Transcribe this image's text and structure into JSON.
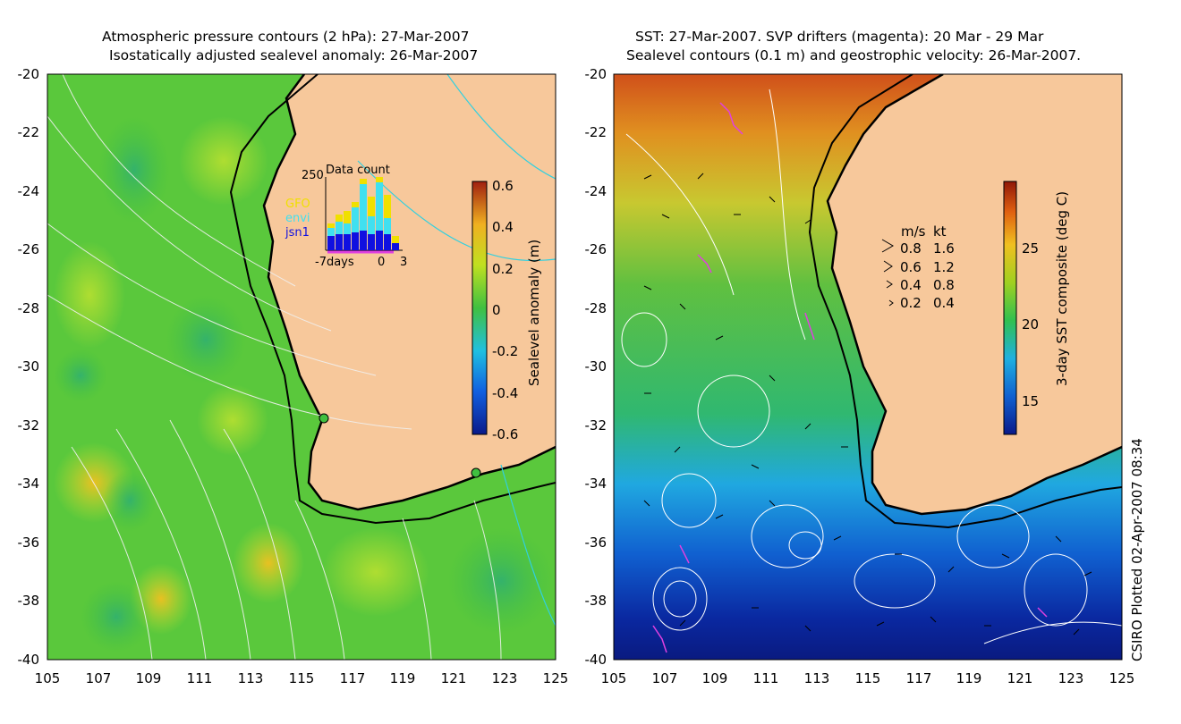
{
  "left_panel": {
    "title_line1": "Atmospheric pressure contours (2 hPa): 27-Mar-2007",
    "title_line2": "Isostatically adjusted sealevel anomaly: 26-Mar-2007",
    "colorbar": {
      "label": "Sealevel anomaly (m)",
      "ticks": [
        "0.6",
        "0.4",
        "0.2",
        "0",
        "-0.2",
        "-0.4",
        "-0.6"
      ]
    },
    "inset": {
      "title": "Data count",
      "y_tick": "250",
      "legend": [
        "GFO",
        "envi",
        "jsn1"
      ],
      "x_ticks": [
        "-7days",
        "0",
        "3"
      ],
      "colors": {
        "GFO": "#f0e000",
        "envi": "#40e0f0",
        "jsn1": "#1010e0"
      }
    }
  },
  "right_panel": {
    "title_line1": "SST: 27-Mar-2007. SVP drifters (magenta): 20 Mar - 29 Mar",
    "title_line2": "Sealevel contours (0.1 m) and geostrophic velocity: 26-Mar-2007.",
    "colorbar": {
      "label": "3-day SST composite (deg C)",
      "ticks": [
        "25",
        "20",
        "15"
      ]
    },
    "speed_legend": {
      "header_ms": "m/s",
      "header_kt": "kt",
      "rows": [
        {
          "ms": "0.8",
          "kt": "1.6"
        },
        {
          "ms": "0.6",
          "kt": "1.2"
        },
        {
          "ms": "0.4",
          "kt": "0.8"
        },
        {
          "ms": "0.2",
          "kt": "0.4"
        }
      ]
    }
  },
  "y_ticks": [
    "-20",
    "-22",
    "-24",
    "-26",
    "-28",
    "-30",
    "-32",
    "-34",
    "-36",
    "-38",
    "-40"
  ],
  "x_ticks": [
    "105",
    "107",
    "109",
    "111",
    "113",
    "115",
    "117",
    "119",
    "121",
    "123",
    "125"
  ],
  "credit": "CSIRO Plotted 02-Apr-2007 08:34",
  "colors": {
    "land": "#f7c89b",
    "ocean_left": "#5ac83c",
    "sst_cold": "#0a2a9a",
    "sst_warm": "#d04010",
    "drifter": "#e040e0"
  }
}
